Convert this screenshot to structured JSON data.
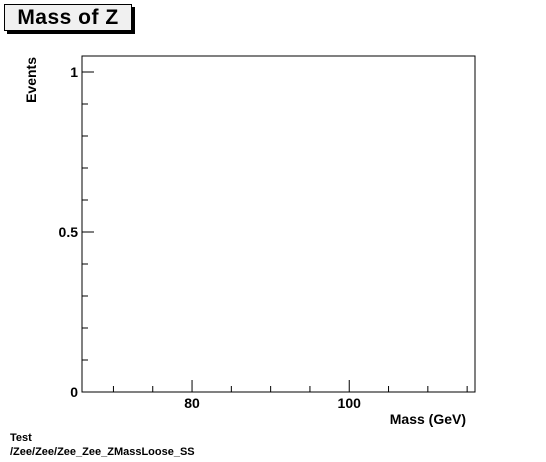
{
  "chart_data": {
    "type": "line",
    "title": "Mass of Z",
    "xlabel": "Mass (GeV)",
    "ylabel": "Events",
    "xlim": [
      66,
      116
    ],
    "ylim": [
      0,
      1.05
    ],
    "x_major_ticks": [
      80,
      100
    ],
    "x_tick_labels": [
      "80",
      "100"
    ],
    "y_major_ticks": [
      0,
      0.5,
      1
    ],
    "y_tick_labels": [
      "0",
      "0.5",
      "1"
    ],
    "series": [],
    "grid": false,
    "legend": "none"
  },
  "footer": {
    "line1": "Test",
    "line2": "/Zee/Zee/Zee_Zee_ZMassLoose_SS"
  }
}
